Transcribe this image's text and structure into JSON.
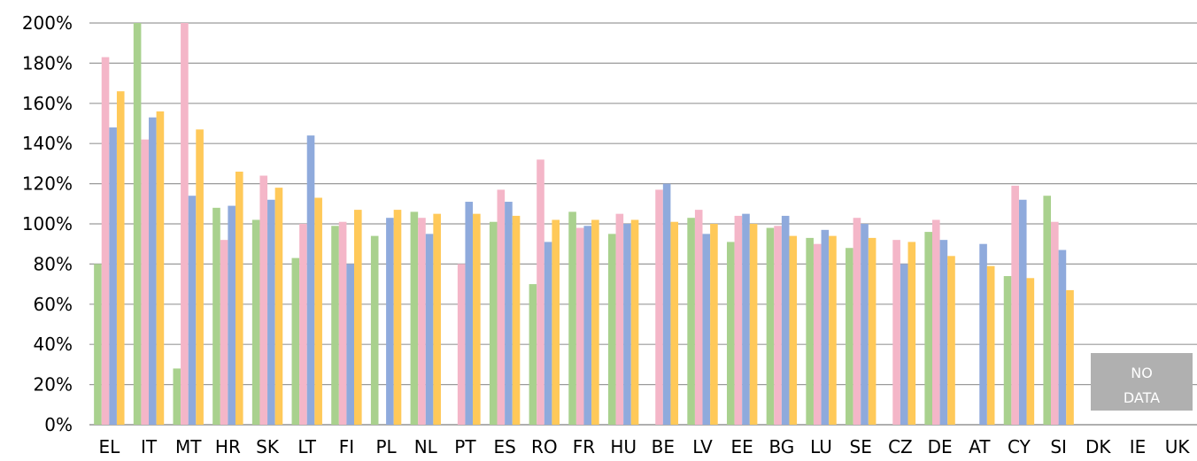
{
  "chart_data": {
    "type": "bar",
    "categories": [
      "EL",
      "IT",
      "MT",
      "HR",
      "SK",
      "LT",
      "FI",
      "PL",
      "NL",
      "PT",
      "ES",
      "RO",
      "FR",
      "HU",
      "BE",
      "LV",
      "EE",
      "BG",
      "LU",
      "SE",
      "CZ",
      "DE",
      "AT",
      "CY",
      "SI",
      "DK",
      "IE",
      "UK"
    ],
    "series": [
      {
        "color": "#a9d18e",
        "values": [
          80,
          200,
          28,
          108,
          102,
          83,
          99,
          94,
          106,
          null,
          101,
          70,
          106,
          95,
          null,
          103,
          91,
          98,
          93,
          88,
          null,
          96,
          null,
          74,
          114,
          null,
          null,
          null
        ]
      },
      {
        "color": "#f4b6c8",
        "values": [
          183,
          142,
          200,
          92,
          124,
          100,
          101,
          null,
          103,
          80,
          117,
          132,
          98,
          105,
          117,
          107,
          104,
          99,
          90,
          103,
          92,
          102,
          null,
          119,
          101,
          null,
          null,
          null
        ]
      },
      {
        "color": "#8faadc",
        "values": [
          148,
          153,
          114,
          109,
          112,
          144,
          80,
          103,
          95,
          111,
          111,
          91,
          99,
          100,
          120,
          95,
          105,
          104,
          97,
          100,
          80,
          92,
          90,
          112,
          87,
          null,
          null,
          null
        ]
      },
      {
        "color": "#ffc959",
        "values": [
          166,
          156,
          147,
          126,
          118,
          113,
          107,
          107,
          105,
          105,
          104,
          102,
          102,
          102,
          101,
          100,
          100,
          94,
          94,
          93,
          91,
          84,
          79,
          73,
          67,
          null,
          null,
          null
        ]
      }
    ],
    "y_ticks": [
      "0%",
      "20%",
      "40%",
      "60%",
      "80%",
      "100%",
      "120%",
      "140%",
      "160%",
      "180%",
      "200%"
    ],
    "ylim": [
      0,
      200
    ],
    "grid": true,
    "nodata_label": [
      "NO",
      "DATA"
    ]
  }
}
